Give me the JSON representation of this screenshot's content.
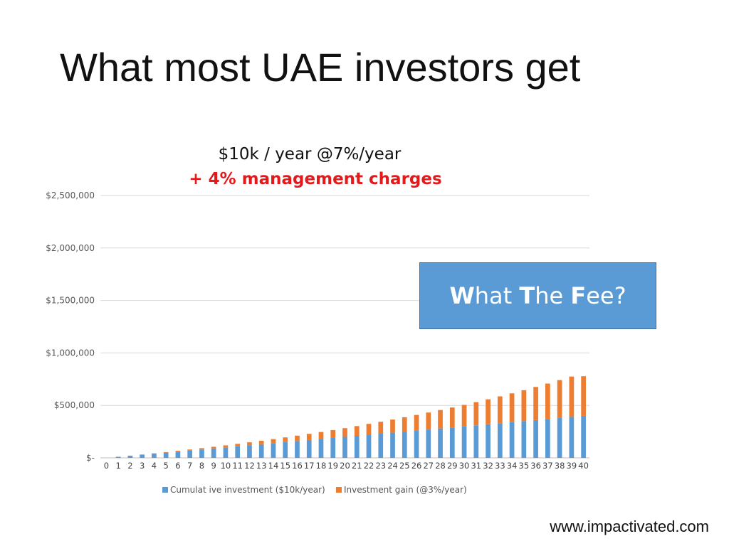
{
  "slide": {
    "title": "What most UAE investors get",
    "website": "www.impactivated.com",
    "callout": {
      "text": "What The Fee?",
      "color": "#5b9bd5"
    }
  },
  "chart_data": {
    "type": "bar",
    "stacked": true,
    "title": "$10k / year @7%/year",
    "subtitle": "+ 4% management charges",
    "subtitle_color": "#e31a1c",
    "ylim": [
      0,
      2500000
    ],
    "yticks": [
      0,
      500000,
      1000000,
      1500000,
      2000000,
      2500000
    ],
    "ytick_labels": [
      "$-",
      "$500,000",
      "$1,000,000",
      "$1,500,000",
      "$2,000,000",
      "$2,500,000"
    ],
    "grid": true,
    "legend": "bottom",
    "categories": [
      "0",
      "1",
      "2",
      "3",
      "4",
      "5",
      "6",
      "7",
      "8",
      "9",
      "10",
      "11",
      "12",
      "13",
      "14",
      "15",
      "16",
      "17",
      "18",
      "19",
      "20",
      "21",
      "22",
      "23",
      "24",
      "25",
      "26",
      "27",
      "28",
      "29",
      "30",
      "31",
      "32",
      "33",
      "34",
      "35",
      "36",
      "37",
      "38",
      "39",
      "40"
    ],
    "series": [
      {
        "name": "Cumulat ive investment ($10k/year)",
        "color": "#5b9bd5",
        "values": [
          0,
          10000,
          20000,
          30000,
          40000,
          50000,
          60000,
          70000,
          80000,
          90000,
          100000,
          110000,
          120000,
          130000,
          140000,
          150000,
          160000,
          170000,
          180000,
          190000,
          200000,
          210000,
          220000,
          230000,
          240000,
          250000,
          260000,
          270000,
          280000,
          290000,
          300000,
          310000,
          320000,
          330000,
          340000,
          350000,
          360000,
          370000,
          380000,
          390000,
          400000
        ]
      },
      {
        "name": "Investment gain (@3%/year)",
        "color": "#ed7d31",
        "values": [
          0,
          300,
          900,
          1800,
          3200,
          4900,
          7000,
          9400,
          12200,
          15500,
          19200,
          23300,
          27900,
          33000,
          38600,
          44700,
          51400,
          58600,
          66400,
          74900,
          82900,
          92900,
          103800,
          113800,
          124800,
          136800,
          148800,
          161800,
          175800,
          189800,
          204800,
          220800,
          237800,
          255800,
          274800,
          294800,
          315800,
          337800,
          360800,
          384800,
          378000
        ]
      }
    ]
  }
}
